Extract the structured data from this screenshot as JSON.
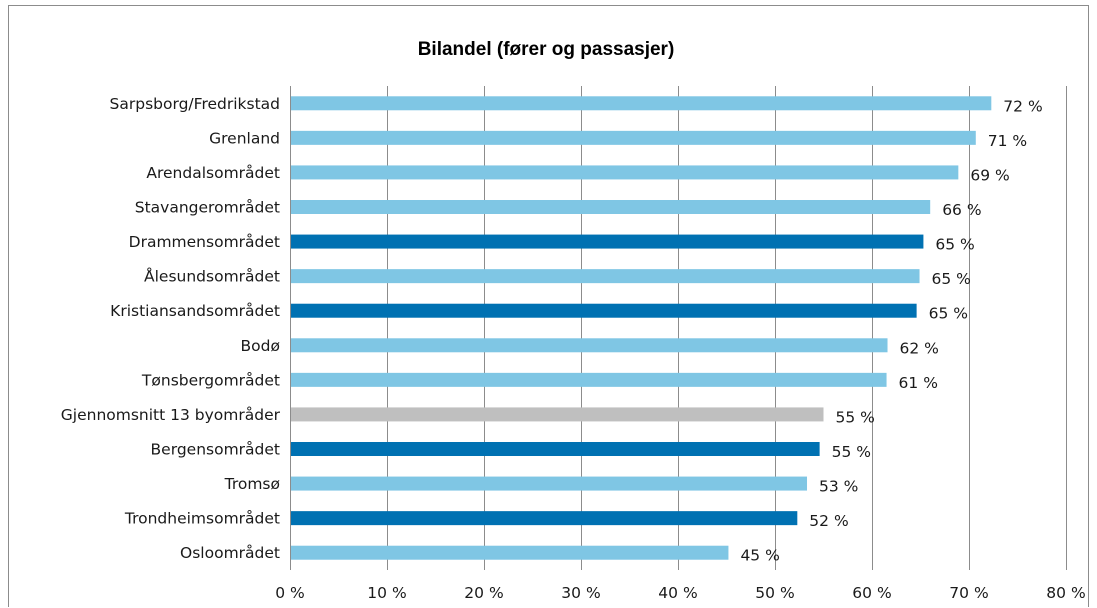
{
  "chart_data": {
    "type": "bar",
    "orientation": "horizontal",
    "title": "Bilandel (fører og passasjer)",
    "xlabel": "",
    "ylabel": "",
    "xlim": [
      0,
      80
    ],
    "x_ticks": [
      0,
      10,
      20,
      30,
      40,
      50,
      60,
      70,
      80
    ],
    "x_tick_labels": [
      "0 %",
      "10 %",
      "20 %",
      "30 %",
      "40 %",
      "50 %",
      "60 %",
      "70 %",
      "80 %"
    ],
    "grid": "vertical",
    "legend": "none",
    "categories": [
      "Sarpsborg/Fredrikstad",
      "Grenland",
      "Arendalsområdet",
      "Stavangerområdet",
      "Drammensområdet",
      "Ålesundsområdet",
      "Kristiansandsområdet",
      "Bodø",
      "Tønsbergområdet",
      "Gjennomsnitt 13 byområder",
      "Bergensområdet",
      "Tromsø",
      "Trondheimsområdet",
      "Osloområdet"
    ],
    "values": [
      72.3,
      70.7,
      68.9,
      66.0,
      65.3,
      64.9,
      64.6,
      61.6,
      61.5,
      55.0,
      54.6,
      53.3,
      52.3,
      45.2
    ],
    "data_labels": [
      "72 %",
      "71 %",
      "69 %",
      "66 %",
      "65 %",
      "65 %",
      "65 %",
      "62 %",
      "61 %",
      "55 %",
      "55 %",
      "53 %",
      "52 %",
      "45 %"
    ],
    "bar_colors": [
      "#7fc6e4",
      "#7fc6e4",
      "#7fc6e4",
      "#7fc6e4",
      "#0071b2",
      "#7fc6e4",
      "#0071b2",
      "#7fc6e4",
      "#7fc6e4",
      "#bfbfbf",
      "#0071b2",
      "#7fc6e4",
      "#0071b2",
      "#7fc6e4"
    ],
    "colors": {
      "light_blue": "#7fc6e4",
      "dark_blue": "#0071b2",
      "average_gray": "#bfbfbf",
      "gridline": "#8c8c8c"
    }
  }
}
